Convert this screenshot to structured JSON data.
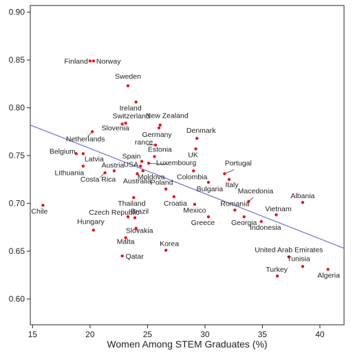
{
  "chart_data": {
    "type": "scatter",
    "title": "",
    "xlabel": "Women Among STEM Graduates (%)",
    "ylabel": "",
    "xlim": [
      14.8,
      42.1
    ],
    "ylim": [
      0.573,
      0.907
    ],
    "xticks": [
      15,
      20,
      25,
      30,
      35,
      40
    ],
    "yticks": [
      0.6,
      0.65,
      0.7,
      0.75,
      0.8,
      0.85,
      0.9
    ],
    "xtick_labels": [
      "15",
      "20",
      "25",
      "30",
      "35",
      "40"
    ],
    "ytick_labels": [
      "0.60",
      "0.65",
      "0.70",
      "0.75",
      "0.80",
      "0.85",
      "0.90"
    ],
    "grid": false,
    "colors": {
      "points": "#e8141b",
      "trend": "#6e6ec8",
      "axis": "#222222",
      "leader": "#333333"
    },
    "trend_line": {
      "x": [
        14.8,
        42.1
      ],
      "y": [
        0.782,
        0.653
      ]
    },
    "points": [
      {
        "label": "Finland",
        "x": 20.0,
        "y": 0.849
      },
      {
        "label": "Norway",
        "x": 20.3,
        "y": 0.849
      },
      {
        "label": "Sweden",
        "x": 23.3,
        "y": 0.823
      },
      {
        "label": "Ireland",
        "x": 24.0,
        "y": 0.806
      },
      {
        "label": "Switzerland",
        "x": 23.1,
        "y": 0.784
      },
      {
        "label": "Slovenia",
        "x": 22.8,
        "y": 0.783
      },
      {
        "label": "New Zealand",
        "x": 26.1,
        "y": 0.782
      },
      {
        "label": "Germany",
        "x": 26.0,
        "y": 0.779
      },
      {
        "label": "Netherlands",
        "x": 20.2,
        "y": 0.775
      },
      {
        "label": "Denmark",
        "x": 29.3,
        "y": 0.768
      },
      {
        "label": "rance",
        "x": 25.7,
        "y": 0.761
      },
      {
        "label": "Estonia",
        "x": 25.6,
        "y": 0.749
      },
      {
        "label": "UK",
        "x": 29.2,
        "y": 0.757
      },
      {
        "label": "Belgium",
        "x": 18.8,
        "y": 0.752
      },
      {
        "label": "Latvia",
        "x": 19.4,
        "y": 0.752
      },
      {
        "label": "Spain",
        "x": 24.5,
        "y": 0.744
      },
      {
        "label": "Luxembourg",
        "x": 25.1,
        "y": 0.742
      },
      {
        "label": "Portugal",
        "x": 31.7,
        "y": 0.731
      },
      {
        "label": "USA",
        "x": 24.4,
        "y": 0.739
      },
      {
        "label": "Lithuania",
        "x": 19.4,
        "y": 0.739
      },
      {
        "label": "Austria",
        "x": 22.1,
        "y": 0.734
      },
      {
        "label": "Moldova",
        "x": 24.6,
        "y": 0.734
      },
      {
        "label": "Costa Rica",
        "x": 21.3,
        "y": 0.732
      },
      {
        "label": "Colombia",
        "x": 29.0,
        "y": 0.734
      },
      {
        "label": "Australia",
        "x": 24.1,
        "y": 0.731
      },
      {
        "label": "Italy",
        "x": 32.1,
        "y": 0.725
      },
      {
        "label": "Bulgaria",
        "x": 30.3,
        "y": 0.722
      },
      {
        "label": "Poland",
        "x": 26.6,
        "y": 0.715
      },
      {
        "label": "Macedonia",
        "x": 33.8,
        "y": 0.702
      },
      {
        "label": "Albania",
        "x": 38.5,
        "y": 0.701
      },
      {
        "label": "Thailand",
        "x": 23.8,
        "y": 0.706
      },
      {
        "label": "Croatia",
        "x": 27.3,
        "y": 0.707
      },
      {
        "label": "Chile",
        "x": 15.9,
        "y": 0.698
      },
      {
        "label": "Mexico",
        "x": 29.1,
        "y": 0.699
      },
      {
        "label": "Romania",
        "x": 32.6,
        "y": 0.693
      },
      {
        "label": "Vietnam",
        "x": 36.2,
        "y": 0.688
      },
      {
        "label": "Czech Republic",
        "x": 23.3,
        "y": 0.686
      },
      {
        "label": "Brazil",
        "x": 23.9,
        "y": 0.685
      },
      {
        "label": "Greece",
        "x": 30.3,
        "y": 0.686
      },
      {
        "label": "Georgia",
        "x": 33.4,
        "y": 0.686
      },
      {
        "label": "Indonesia",
        "x": 34.9,
        "y": 0.681
      },
      {
        "label": "Hungary",
        "x": 20.3,
        "y": 0.672
      },
      {
        "label": "Slovakia",
        "x": 24.0,
        "y": 0.674
      },
      {
        "label": "Malta",
        "x": 23.1,
        "y": 0.664
      },
      {
        "label": "Korea",
        "x": 26.6,
        "y": 0.651
      },
      {
        "label": "Qatar",
        "x": 22.8,
        "y": 0.645
      },
      {
        "label": "United Arab Emirates",
        "x": 37.3,
        "y": 0.644
      },
      {
        "label": "Tunisia",
        "x": 38.5,
        "y": 0.634
      },
      {
        "label": "Turkey",
        "x": 36.3,
        "y": 0.624
      },
      {
        "label": "Algeria",
        "x": 40.7,
        "y": 0.631
      }
    ]
  }
}
